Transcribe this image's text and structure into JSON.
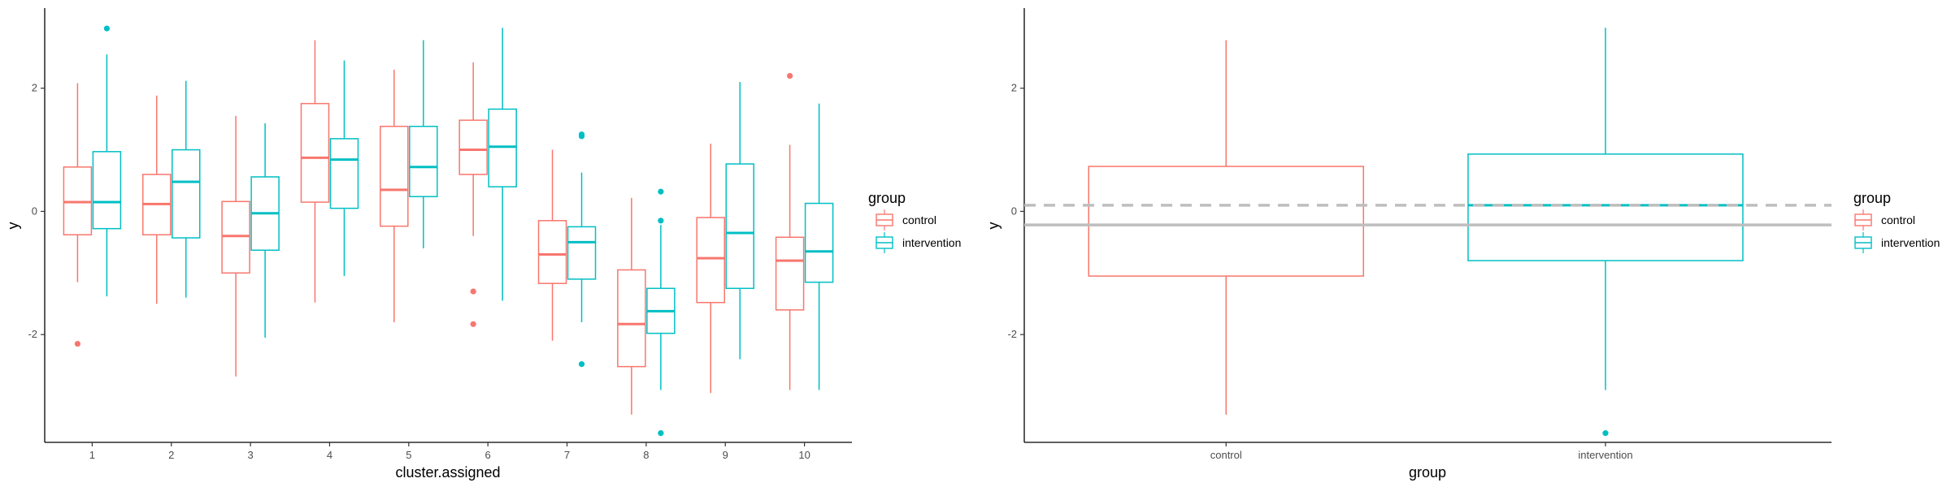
{
  "colors": {
    "control": "#F8766D",
    "intervention": "#00BFC4",
    "refline": "#BEBEBE"
  },
  "chart_data": [
    {
      "type": "boxplot",
      "xlabel": "cluster.assigned",
      "ylabel": "y",
      "ylim": [
        -3.75,
        3.3
      ],
      "yticks": [
        -2,
        0,
        2
      ],
      "ytick_labels": [
        "-2",
        "0",
        "2"
      ],
      "categories": [
        "1",
        "2",
        "3",
        "4",
        "5",
        "6",
        "7",
        "8",
        "9",
        "10"
      ],
      "legend": {
        "title": "group",
        "entries": [
          "control",
          "intervention"
        ],
        "position": "right"
      },
      "series": [
        {
          "name": "control",
          "boxes": [
            {
              "low": -1.15,
              "q1": -0.38,
              "median": 0.15,
              "q3": 0.72,
              "high": 2.08,
              "outliers": [
                -2.15
              ]
            },
            {
              "low": -1.5,
              "q1": -0.38,
              "median": 0.12,
              "q3": 0.6,
              "high": 1.88,
              "outliers": []
            },
            {
              "low": -2.68,
              "q1": -1.0,
              "median": -0.4,
              "q3": 0.16,
              "high": 1.55,
              "outliers": []
            },
            {
              "low": -1.48,
              "q1": 0.15,
              "median": 0.87,
              "q3": 1.75,
              "high": 2.78,
              "outliers": []
            },
            {
              "low": -1.8,
              "q1": -0.24,
              "median": 0.35,
              "q3": 1.38,
              "high": 2.3,
              "outliers": []
            },
            {
              "low": -0.4,
              "q1": 0.6,
              "median": 1.0,
              "q3": 1.48,
              "high": 2.42,
              "outliers": [
                -1.3,
                -1.83
              ]
            },
            {
              "low": -2.1,
              "q1": -1.17,
              "median": -0.7,
              "q3": -0.15,
              "high": 1.0,
              "outliers": []
            },
            {
              "low": -3.3,
              "q1": -2.52,
              "median": -1.83,
              "q3": -0.95,
              "high": 0.22,
              "outliers": []
            },
            {
              "low": -2.95,
              "q1": -1.48,
              "median": -0.76,
              "q3": -0.1,
              "high": 1.1,
              "outliers": []
            },
            {
              "low": -2.9,
              "q1": -1.6,
              "median": -0.8,
              "q3": -0.42,
              "high": 1.08,
              "outliers": [
                2.2
              ]
            }
          ]
        },
        {
          "name": "intervention",
          "boxes": [
            {
              "low": -1.38,
              "q1": -0.28,
              "median": 0.15,
              "q3": 0.97,
              "high": 2.55,
              "outliers": [
                2.97
              ]
            },
            {
              "low": -1.4,
              "q1": -0.43,
              "median": 0.48,
              "q3": 1.0,
              "high": 2.12,
              "outliers": []
            },
            {
              "low": -2.05,
              "q1": -0.63,
              "median": -0.03,
              "q3": 0.56,
              "high": 1.43,
              "outliers": []
            },
            {
              "low": -1.05,
              "q1": 0.05,
              "median": 0.84,
              "q3": 1.18,
              "high": 2.45,
              "outliers": []
            },
            {
              "low": -0.6,
              "q1": 0.24,
              "median": 0.72,
              "q3": 1.38,
              "high": 2.78,
              "outliers": []
            },
            {
              "low": -1.45,
              "q1": 0.4,
              "median": 1.05,
              "q3": 1.66,
              "high": 2.98,
              "outliers": []
            },
            {
              "low": -1.8,
              "q1": -1.1,
              "median": -0.5,
              "q3": -0.25,
              "high": 0.63,
              "outliers": [
                1.22,
                1.25,
                -2.48
              ]
            },
            {
              "low": -2.9,
              "q1": -1.98,
              "median": -1.62,
              "q3": -1.25,
              "high": -0.22,
              "outliers": [
                0.32,
                -0.15,
                -3.6
              ]
            },
            {
              "low": -2.4,
              "q1": -1.25,
              "median": -0.35,
              "q3": 0.77,
              "high": 2.1,
              "outliers": []
            },
            {
              "low": -2.9,
              "q1": -1.15,
              "median": -0.65,
              "q3": 0.13,
              "high": 1.75,
              "outliers": []
            }
          ]
        }
      ]
    },
    {
      "type": "boxplot",
      "xlabel": "group",
      "ylabel": "y",
      "ylim": [
        -3.75,
        3.3
      ],
      "yticks": [
        -2,
        0,
        2
      ],
      "ytick_labels": [
        "-2",
        "0",
        "2"
      ],
      "categories": [
        "control",
        "intervention"
      ],
      "legend": {
        "title": "group",
        "entries": [
          "control",
          "intervention"
        ],
        "position": "right"
      },
      "boxes": [
        {
          "name": "control",
          "low": -3.3,
          "q1": -1.05,
          "median": -0.22,
          "q3": 0.73,
          "high": 2.78,
          "outliers": []
        },
        {
          "name": "intervention",
          "low": -2.9,
          "q1": -0.8,
          "median": 0.1,
          "q3": 0.93,
          "high": 2.98,
          "outliers": [
            -3.6
          ]
        }
      ],
      "reference_lines": [
        {
          "style": "dashed",
          "y": 0.1
        },
        {
          "style": "solid",
          "y": -0.22
        }
      ]
    }
  ]
}
